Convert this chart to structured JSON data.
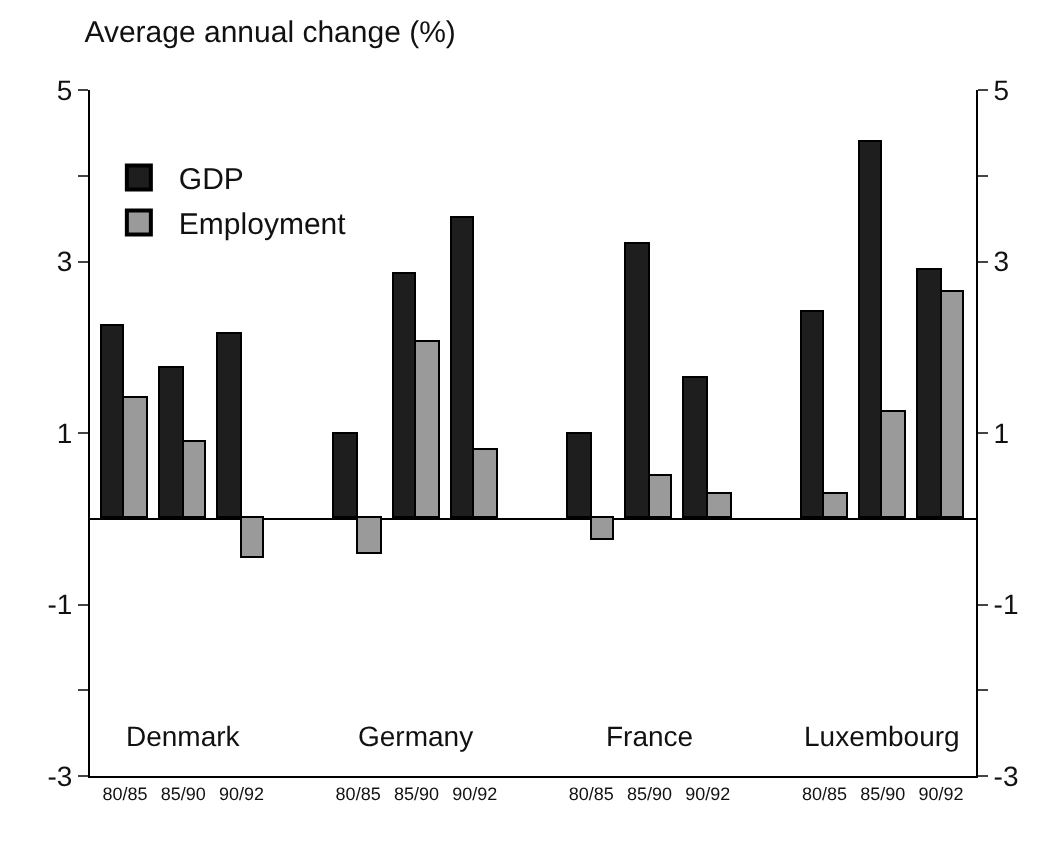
{
  "chart_data": {
    "type": "bar",
    "title": "Average annual change (%)",
    "categories": [
      "80/85",
      "85/90",
      "90/92",
      "80/85",
      "85/90",
      "90/92",
      "80/85",
      "85/90",
      "90/92",
      "80/85",
      "85/90",
      "90/92"
    ],
    "series": [
      {
        "name": "GDP",
        "color": "#1e1e1e",
        "values": [
          2.25,
          1.75,
          2.15,
          1.0,
          2.85,
          3.5,
          1.0,
          3.2,
          1.65,
          2.4,
          4.4,
          2.9
        ]
      },
      {
        "name": "Employment",
        "color": "#9a9a9a",
        "values": [
          1.4,
          0.9,
          -0.45,
          -0.4,
          2.05,
          0.8,
          -0.25,
          0.5,
          0.3,
          0.3,
          1.25,
          2.65
        ]
      }
    ],
    "annotations": [
      "Denmark",
      "Germany",
      "France",
      "Luxembourg"
    ],
    "ylim": [
      -3,
      5
    ],
    "yticks": [
      -3,
      {
        "value": -2,
        "label": null
      },
      -1,
      1,
      3,
      {
        "value": 4,
        "label": null
      },
      5
    ],
    "y2lim": [
      -3,
      5
    ],
    "y2ticks": [
      -3,
      {
        "value": -2,
        "label": null
      },
      -1,
      1,
      3,
      {
        "value": 4,
        "label": null
      },
      5
    ],
    "legend": "top left"
  }
}
